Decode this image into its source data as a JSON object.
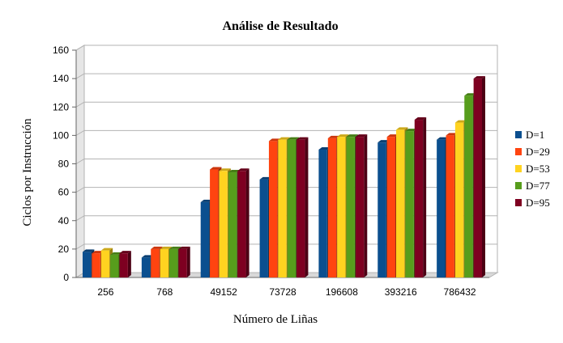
{
  "chart_data": {
    "type": "bar",
    "title": "Análise de Resultado",
    "xlabel": "Número de Liñas",
    "ylabel": "Ciclos por Instrucción",
    "ylim": [
      0,
      160
    ],
    "yticks": [
      0,
      20,
      40,
      60,
      80,
      100,
      120,
      140,
      160
    ],
    "grid": true,
    "legend_position": "right",
    "categories": [
      "256",
      "768",
      "49152",
      "73728",
      "196608",
      "393216",
      "786432"
    ],
    "series": [
      {
        "name": "D=1",
        "color": "#0b4f8f",
        "values": [
          18,
          14,
          53,
          69,
          90,
          95,
          97
        ]
      },
      {
        "name": "D=29",
        "color": "#ff4410",
        "values": [
          17,
          20,
          76,
          96,
          98,
          99,
          100
        ]
      },
      {
        "name": "D=53",
        "color": "#ffd320",
        "values": [
          19,
          20,
          75,
          97,
          99,
          104,
          109
        ]
      },
      {
        "name": "D=77",
        "color": "#579d1c",
        "values": [
          16,
          20,
          74,
          97,
          99,
          103,
          128
        ]
      },
      {
        "name": "D=95",
        "color": "#7e0021",
        "values": [
          17,
          20,
          75,
          97,
          99,
          111,
          140
        ]
      }
    ]
  }
}
